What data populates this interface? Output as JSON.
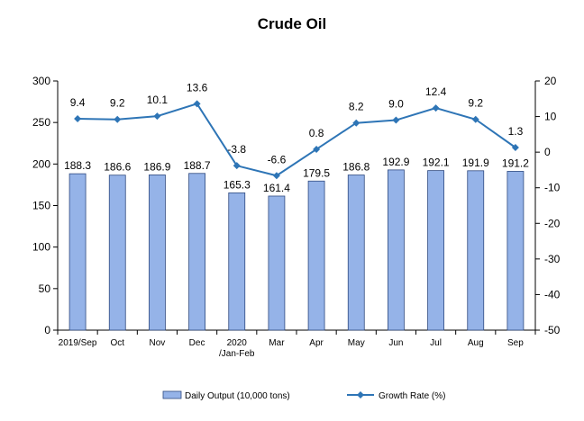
{
  "chart_data": {
    "type": "bar",
    "title": "Crude Oil",
    "categories": [
      [
        "2019/Sep"
      ],
      [
        "Oct"
      ],
      [
        "Nov"
      ],
      [
        "Dec"
      ],
      [
        "2020",
        "/Jan-Feb"
      ],
      [
        "Mar"
      ],
      [
        "Apr"
      ],
      [
        "May"
      ],
      [
        "Jun"
      ],
      [
        "Jul"
      ],
      [
        "Aug"
      ],
      [
        "Sep"
      ]
    ],
    "series": [
      {
        "name": "Daily Output (10,000 tons)",
        "type": "bar",
        "axis": "left",
        "values": [
          188.3,
          186.6,
          186.9,
          188.7,
          165.3,
          161.4,
          179.5,
          186.8,
          192.9,
          192.1,
          191.9,
          191.2
        ],
        "labels": [
          "188.3",
          "186.6",
          "186.9",
          "188.7",
          "165.3",
          "161.4",
          "179.5",
          "186.8",
          "192.9",
          "192.1",
          "191.9",
          "191.2"
        ]
      },
      {
        "name": "Growth Rate (%)",
        "type": "line",
        "axis": "right",
        "values": [
          9.4,
          9.2,
          10.1,
          13.6,
          -3.8,
          -6.6,
          0.8,
          8.2,
          9.0,
          12.4,
          9.2,
          1.3
        ],
        "labels": [
          "9.4",
          "9.2",
          "10.1",
          "13.6",
          "-3.8",
          "-6.6",
          "0.8",
          "8.2",
          "9.0",
          "12.4",
          "9.2",
          "1.3"
        ]
      }
    ],
    "y_left": {
      "ylim": [
        0,
        300
      ],
      "ticks": [
        "0",
        "50",
        "100",
        "150",
        "200",
        "250",
        "300"
      ]
    },
    "y_right": {
      "ylim": [
        -50,
        20
      ],
      "ticks": [
        "-50",
        "-40",
        "-30",
        "-20",
        "-10",
        "0",
        "10",
        "20"
      ]
    },
    "grid": false,
    "legend_position": "bottom",
    "colors": {
      "bar_fill": "#95b3e8",
      "bar_stroke": "#2f4a80",
      "line": "#2e75b6",
      "axis": "#000000"
    }
  }
}
